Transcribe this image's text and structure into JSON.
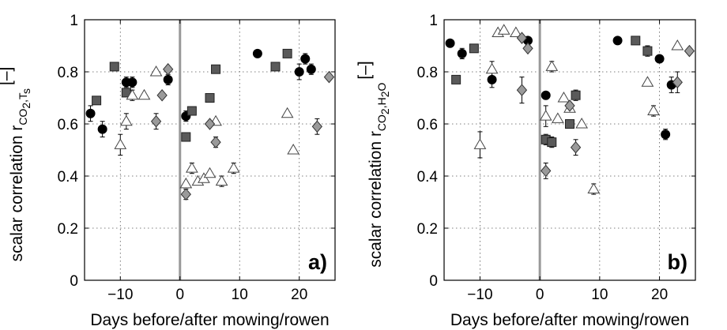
{
  "chart_data": [
    {
      "type": "scatter",
      "panel_label": "a)",
      "xlabel": "Days before/after mowing/rowen",
      "ylabel_main": "scalar correlation r",
      "ylabel_sub1": "CO",
      "ylabel_sub2": "2",
      "ylabel_sub3": ",T",
      "ylabel_sub4": "s",
      "ylabel_unit": "[–]",
      "xlim": [
        -16,
        26
      ],
      "ylim": [
        0,
        1
      ],
      "xticks": [
        -10,
        0,
        10,
        20
      ],
      "xtick_labels": [
        "−10",
        "0",
        "10",
        "20"
      ],
      "yticks": [
        0,
        0.2,
        0.4,
        0.6,
        0.8,
        1
      ],
      "ytick_labels": [
        "0",
        "0.2",
        "0.4",
        "0.6",
        "0.8",
        "1"
      ],
      "grid": true,
      "vline_x": 0,
      "series": [
        {
          "marker": "circle",
          "color": "#000000",
          "points": [
            {
              "x": -15,
              "y": 0.64,
              "err": 0.03
            },
            {
              "x": -13,
              "y": 0.58,
              "err": 0.03
            },
            {
              "x": -9,
              "y": 0.76,
              "err": 0.02
            },
            {
              "x": -8,
              "y": 0.76,
              "err": 0.02
            },
            {
              "x": -2,
              "y": 0.77,
              "err": 0.02
            },
            {
              "x": 1,
              "y": 0.63,
              "err": 0.02
            },
            {
              "x": 13,
              "y": 0.87,
              "err": 0.01
            },
            {
              "x": 20,
              "y": 0.8,
              "err": 0.03
            },
            {
              "x": 21,
              "y": 0.85,
              "err": 0.02
            },
            {
              "x": 22,
              "y": 0.81,
              "err": 0.02
            }
          ]
        },
        {
          "marker": "square",
          "color": "#5a5a5a",
          "points": [
            {
              "x": -14,
              "y": 0.69
            },
            {
              "x": -11,
              "y": 0.82
            },
            {
              "x": -9,
              "y": 0.72
            },
            {
              "x": 1,
              "y": 0.55
            },
            {
              "x": 2,
              "y": 0.65
            },
            {
              "x": 5,
              "y": 0.7
            },
            {
              "x": 6,
              "y": 0.81
            },
            {
              "x": 16,
              "y": 0.82
            },
            {
              "x": 18,
              "y": 0.87
            }
          ]
        },
        {
          "marker": "triangle",
          "color": "#ffffff",
          "points": [
            {
              "x": -10,
              "y": 0.52,
              "err": 0.04
            },
            {
              "x": -8,
              "y": 0.71,
              "err": 0.02
            },
            {
              "x": -9,
              "y": 0.61,
              "err": 0.03
            },
            {
              "x": -6,
              "y": 0.71
            },
            {
              "x": -4,
              "y": 0.8
            },
            {
              "x": 1,
              "y": 0.37
            },
            {
              "x": 2,
              "y": 0.43,
              "err": 0.02
            },
            {
              "x": 3,
              "y": 0.38
            },
            {
              "x": 4,
              "y": 0.39
            },
            {
              "x": 5,
              "y": 0.41
            },
            {
              "x": 6,
              "y": 0.61
            },
            {
              "x": 7,
              "y": 0.38,
              "err": 0.02
            },
            {
              "x": 9,
              "y": 0.43,
              "err": 0.02
            },
            {
              "x": 18,
              "y": 0.64
            },
            {
              "x": 19,
              "y": 0.5
            }
          ]
        },
        {
          "marker": "diamond",
          "color": "#9a9a9a",
          "points": [
            {
              "x": -4,
              "y": 0.61,
              "err": 0.03
            },
            {
              "x": -3,
              "y": 0.71
            },
            {
              "x": -2,
              "y": 0.81
            },
            {
              "x": 1,
              "y": 0.33,
              "err": 0.02
            },
            {
              "x": 5,
              "y": 0.6
            },
            {
              "x": 6,
              "y": 0.53,
              "err": 0.02
            },
            {
              "x": 23,
              "y": 0.59,
              "err": 0.03
            },
            {
              "x": 25,
              "y": 0.78
            }
          ]
        }
      ]
    },
    {
      "type": "scatter",
      "panel_label": "b)",
      "xlabel": "Days before/after mowing/rowen",
      "ylabel_main": "scalar correlation r",
      "ylabel_sub1": "CO",
      "ylabel_sub2": "2",
      "ylabel_sub3": ",H",
      "ylabel_sub4": "2",
      "ylabel_sub5": "O",
      "ylabel_unit": "[–]",
      "xlim": [
        -16,
        26
      ],
      "ylim": [
        0,
        1
      ],
      "xticks": [
        -10,
        0,
        10,
        20
      ],
      "xtick_labels": [
        "−10",
        "0",
        "10",
        "20"
      ],
      "yticks": [
        0,
        0.2,
        0.4,
        0.6,
        0.8,
        1
      ],
      "ytick_labels": [
        "0",
        "0.2",
        "0.4",
        "0.6",
        "0.8",
        "1"
      ],
      "grid": true,
      "vline_x": 0,
      "series": [
        {
          "marker": "circle",
          "color": "#000000",
          "points": [
            {
              "x": -15,
              "y": 0.91
            },
            {
              "x": -13,
              "y": 0.87,
              "err": 0.02
            },
            {
              "x": -8,
              "y": 0.77,
              "err": 0.03
            },
            {
              "x": -2,
              "y": 0.92
            },
            {
              "x": 1,
              "y": 0.71
            },
            {
              "x": 13,
              "y": 0.92
            },
            {
              "x": 20,
              "y": 0.85
            },
            {
              "x": 21,
              "y": 0.56,
              "err": 0.02
            },
            {
              "x": 22,
              "y": 0.75,
              "err": 0.03
            }
          ]
        },
        {
          "marker": "square",
          "color": "#5a5a5a",
          "points": [
            {
              "x": -14,
              "y": 0.77
            },
            {
              "x": -11,
              "y": 0.89
            },
            {
              "x": 1,
              "y": 0.54,
              "err": 0.02
            },
            {
              "x": 2,
              "y": 0.53,
              "err": 0.02
            },
            {
              "x": 5,
              "y": 0.6
            },
            {
              "x": 6,
              "y": 0.71,
              "err": 0.02
            },
            {
              "x": 16,
              "y": 0.92
            },
            {
              "x": 18,
              "y": 0.88,
              "err": 0.02
            }
          ]
        },
        {
          "marker": "triangle",
          "color": "#ffffff",
          "points": [
            {
              "x": -10,
              "y": 0.52,
              "err": 0.05
            },
            {
              "x": -8,
              "y": 0.81,
              "err": 0.03
            },
            {
              "x": -7,
              "y": 0.95
            },
            {
              "x": -6,
              "y": 0.96
            },
            {
              "x": -4,
              "y": 0.95
            },
            {
              "x": 1,
              "y": 0.63,
              "err": 0.04
            },
            {
              "x": 2,
              "y": 0.82,
              "err": 0.02
            },
            {
              "x": 3,
              "y": 0.62
            },
            {
              "x": 4,
              "y": 0.7
            },
            {
              "x": 5,
              "y": 0.66
            },
            {
              "x": 7,
              "y": 0.6
            },
            {
              "x": 9,
              "y": 0.35,
              "err": 0.02
            },
            {
              "x": 18,
              "y": 0.76
            },
            {
              "x": 19,
              "y": 0.65,
              "err": 0.02
            },
            {
              "x": 23,
              "y": 0.9
            }
          ]
        },
        {
          "marker": "diamond",
          "color": "#9a9a9a",
          "points": [
            {
              "x": -2,
              "y": 0.89
            },
            {
              "x": -3,
              "y": 0.93
            },
            {
              "x": -3,
              "y": 0.73,
              "err": 0.05
            },
            {
              "x": 1,
              "y": 0.42,
              "err": 0.03
            },
            {
              "x": 5,
              "y": 0.67
            },
            {
              "x": 6,
              "y": 0.51,
              "err": 0.03
            },
            {
              "x": 23,
              "y": 0.76,
              "err": 0.04
            },
            {
              "x": 25,
              "y": 0.88
            }
          ]
        }
      ]
    }
  ]
}
